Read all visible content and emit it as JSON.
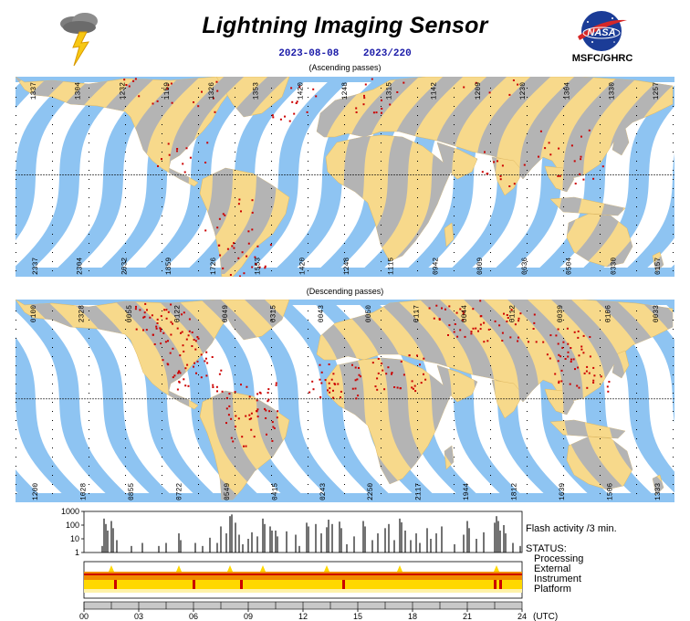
{
  "header": {
    "title": "Lightning Imaging Sensor",
    "date": "2023-08-08",
    "day_of_year": "2023/220",
    "logo_text": "NASA",
    "org": "MSFC/GHRC"
  },
  "ascending": {
    "label": "(Ascending passes)",
    "top_times": [
      "1337",
      "1304",
      "1232",
      "1159",
      "1326",
      "1353",
      "1420",
      "1248",
      "1315",
      "1142",
      "1209",
      "1230",
      "1304",
      "1330",
      "1257"
    ],
    "bottom_times": [
      "2337",
      "2304",
      "2032",
      "1859",
      "1726",
      "1553",
      "1420",
      "1248",
      "1115",
      "0942",
      "0809",
      "0636",
      "0504",
      "0330",
      "0157"
    ]
  },
  "descending": {
    "label": "(Descending passes)",
    "top_times": [
      "0100",
      "2328",
      "0055",
      "0122",
      "0049",
      "0315",
      "0043",
      "0050",
      "0117",
      "0044",
      "0112",
      "0039",
      "0106",
      "0033"
    ],
    "bottom_times": [
      "1200",
      "1028",
      "0855",
      "0722",
      "0549",
      "0415",
      "0243",
      "2250",
      "2117",
      "1944",
      "1812",
      "1639",
      "1506",
      "1333"
    ]
  },
  "chart_data": {
    "type": "bar",
    "title": "Flash activity /3 min.",
    "ylabel": "",
    "y_scale": "log",
    "ylim": [
      1,
      1000
    ],
    "y_ticks": [
      "1",
      "10",
      "100",
      "1000"
    ],
    "xlim": [
      0,
      24
    ],
    "x_ticks": [
      "00",
      "03",
      "06",
      "09",
      "12",
      "15",
      "18",
      "21",
      "24"
    ],
    "x_unit": "(UTC)",
    "series": [
      {
        "values": [
          [
            1.0,
            3
          ],
          [
            1.1,
            300
          ],
          [
            1.2,
            120
          ],
          [
            1.3,
            40
          ],
          [
            1.5,
            200
          ],
          [
            1.6,
            60
          ],
          [
            1.8,
            8
          ],
          [
            2.6,
            3
          ],
          [
            3.2,
            5
          ],
          [
            4.1,
            3
          ],
          [
            4.5,
            5
          ],
          [
            5.2,
            25
          ],
          [
            5.3,
            8
          ],
          [
            6.1,
            5
          ],
          [
            6.5,
            3
          ],
          [
            6.9,
            12
          ],
          [
            7.3,
            5
          ],
          [
            7.5,
            80
          ],
          [
            7.8,
            25
          ],
          [
            8.0,
            450
          ],
          [
            8.1,
            600
          ],
          [
            8.3,
            150
          ],
          [
            8.5,
            20
          ],
          [
            8.7,
            4
          ],
          [
            9.0,
            10
          ],
          [
            9.2,
            30
          ],
          [
            9.5,
            15
          ],
          [
            9.8,
            300
          ],
          [
            9.9,
            120
          ],
          [
            10.2,
            80
          ],
          [
            10.3,
            40
          ],
          [
            10.5,
            40
          ],
          [
            10.6,
            15
          ],
          [
            11.1,
            35
          ],
          [
            11.6,
            20
          ],
          [
            11.8,
            3
          ],
          [
            12.2,
            150
          ],
          [
            12.3,
            80
          ],
          [
            12.7,
            120
          ],
          [
            13.0,
            25
          ],
          [
            13.3,
            70
          ],
          [
            13.4,
            250
          ],
          [
            13.6,
            120
          ],
          [
            14.0,
            180
          ],
          [
            14.1,
            60
          ],
          [
            14.4,
            4
          ],
          [
            14.8,
            15
          ],
          [
            15.3,
            200
          ],
          [
            15.4,
            80
          ],
          [
            15.8,
            8
          ],
          [
            16.1,
            25
          ],
          [
            16.5,
            60
          ],
          [
            16.7,
            120
          ],
          [
            17.0,
            8
          ],
          [
            17.3,
            300
          ],
          [
            17.4,
            160
          ],
          [
            17.6,
            40
          ],
          [
            17.9,
            8
          ],
          [
            18.2,
            25
          ],
          [
            18.4,
            5
          ],
          [
            18.8,
            60
          ],
          [
            19.0,
            10
          ],
          [
            19.3,
            25
          ],
          [
            19.6,
            80
          ],
          [
            20.3,
            4
          ],
          [
            20.8,
            20
          ],
          [
            21.0,
            200
          ],
          [
            21.1,
            60
          ],
          [
            21.5,
            10
          ],
          [
            21.9,
            30
          ],
          [
            22.5,
            150
          ],
          [
            22.6,
            450
          ],
          [
            22.7,
            200
          ],
          [
            22.8,
            40
          ],
          [
            23.0,
            100
          ],
          [
            23.1,
            25
          ],
          [
            23.5,
            5
          ],
          [
            23.9,
            3
          ]
        ]
      }
    ],
    "status_labels": [
      "STATUS:",
      "Processing",
      "External",
      "Instrument",
      "Platform"
    ]
  },
  "colors": {
    "ocean_stripe": "#8ec4f2",
    "land": "#f7d98b",
    "land_shadow": "#b4b4b4",
    "lightning": "#cc0000",
    "date_text": "#1a1aa8",
    "status_yellow": "#ffd800",
    "status_red": "#cc0000",
    "status_orange": "#f08c00"
  }
}
